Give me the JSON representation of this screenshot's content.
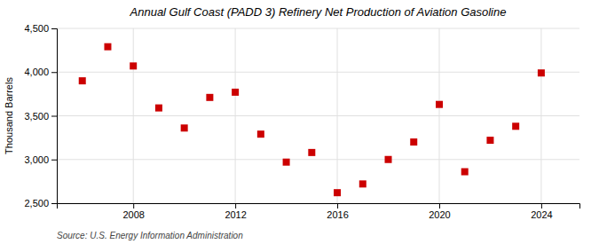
{
  "chart_data": {
    "type": "scatter",
    "title": "Annual Gulf Coast (PADD 3) Refinery Net Production of Aviation Gasoline",
    "ylabel": "Thousand Barrels",
    "source": "Source: U.S. Energy Information Administration",
    "x": [
      2006,
      2007,
      2008,
      2009,
      2010,
      2011,
      2012,
      2013,
      2014,
      2015,
      2016,
      2017,
      2018,
      2019,
      2020,
      2021,
      2022,
      2023,
      2024
    ],
    "values": [
      3900,
      4290,
      4070,
      3590,
      3360,
      3710,
      3770,
      3290,
      2970,
      3080,
      2620,
      2720,
      3000,
      3200,
      3630,
      2860,
      3220,
      3380,
      3990
    ],
    "color": "#cc0000",
    "marker": "square",
    "xlim": [
      2005.0,
      2025.5
    ],
    "xticks": [
      2008,
      2012,
      2016,
      2020,
      2024
    ],
    "ylim": [
      2500,
      4500
    ],
    "yticks": [
      {
        "value": 2500,
        "label": "2,500"
      },
      {
        "value": 3000,
        "label": "3,000"
      },
      {
        "value": 3500,
        "label": "3,500"
      },
      {
        "value": 4000,
        "label": "4,000"
      },
      {
        "value": 4500,
        "label": "4,500"
      }
    ],
    "grid": true
  }
}
